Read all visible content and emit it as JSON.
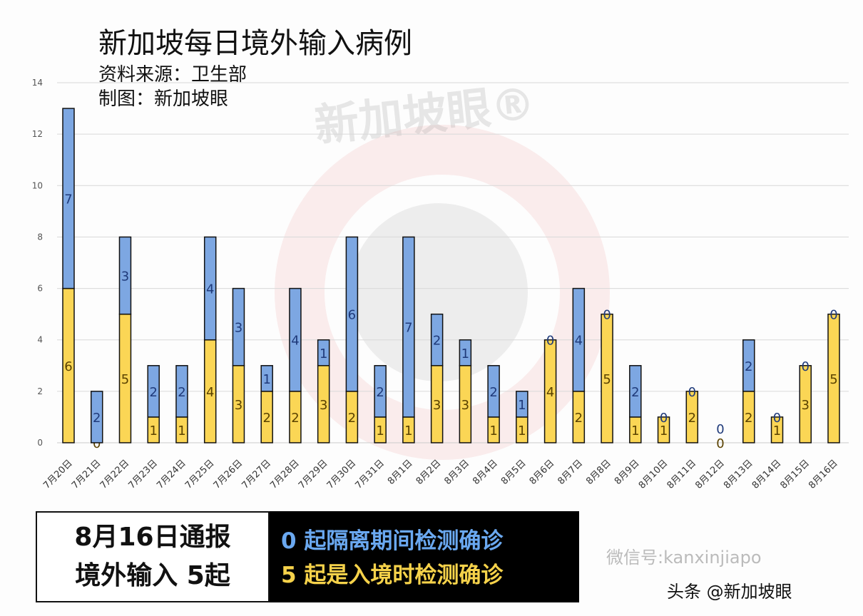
{
  "chart_data": {
    "type": "bar",
    "stacked": true,
    "title": "新加坡每日境外输入病例",
    "subtitle_source": "资料来源：卫生部",
    "subtitle_author": "制图：新加坡眼",
    "categories": [
      "7月20日",
      "7月21日",
      "7月22日",
      "7月23日",
      "7月24日",
      "7月25日",
      "7月26日",
      "7月27日",
      "7月28日",
      "7月29日",
      "7月30日",
      "7月31日",
      "8月1日",
      "8月2日",
      "8月3日",
      "8月4日",
      "8月5日",
      "8月6日",
      "8月7日",
      "8月8日",
      "8月9日",
      "8月10日",
      "8月11日",
      "8月12日",
      "8月13日",
      "8月14日",
      "8月15日",
      "8月16日"
    ],
    "series": [
      {
        "color": "#fbd655",
        "values": [
          6,
          0,
          5,
          1,
          1,
          4,
          3,
          2,
          2,
          3,
          2,
          1,
          1,
          3,
          3,
          1,
          1,
          4,
          2,
          5,
          1,
          1,
          2,
          0,
          2,
          1,
          3,
          5
        ]
      },
      {
        "color": "#7da7e2",
        "values": [
          7,
          2,
          3,
          2,
          2,
          4,
          3,
          1,
          4,
          1,
          6,
          2,
          7,
          2,
          1,
          2,
          1,
          0,
          4,
          0,
          2,
          0,
          0,
          0,
          2,
          0,
          0,
          0
        ]
      }
    ],
    "ylim": [
      0,
      14
    ],
    "yticks": [
      0,
      2,
      4,
      6,
      8,
      10,
      12,
      14
    ],
    "grid": true
  },
  "watermark": "新加坡眼®",
  "summary": {
    "line1": "8月16日通报",
    "line2": "境外输入 5起"
  },
  "legend": {
    "blue_count": "0",
    "blue_text": " 起隔离期间检测确诊",
    "yellow_count": "5",
    "yellow_text": " 起是入境时检测确诊"
  },
  "credit": {
    "wechat": "微信号:kanxinjiapo",
    "toutiao": "头条 @新加坡眼"
  }
}
